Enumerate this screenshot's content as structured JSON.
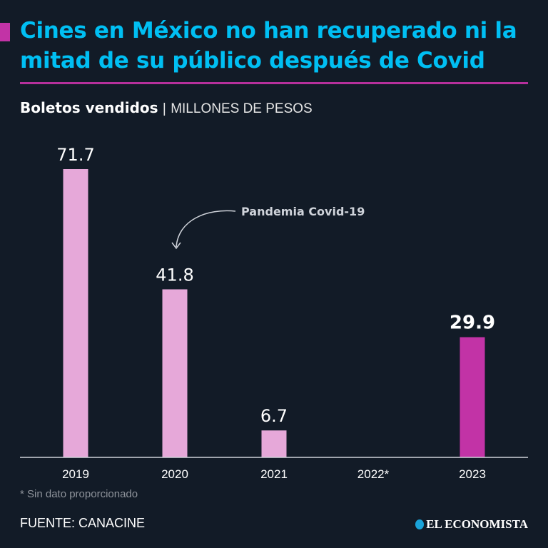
{
  "title": "Cines en México no han recuperado ni la mitad de su público después de Covid",
  "subtitle": {
    "main": "Boletos vendidos",
    "separator": "|",
    "unit": "MILLONES DE PESOS"
  },
  "chart_data": {
    "type": "bar",
    "title": "Boletos vendidos",
    "ylabel": "Millones de pesos",
    "categories": [
      "2019",
      "2020",
      "2021",
      "2022*",
      "2023"
    ],
    "values": [
      71.7,
      41.8,
      6.7,
      null,
      29.9
    ],
    "value_labels": [
      "71.7",
      "41.8",
      "6.7",
      "",
      "29.9"
    ],
    "ylim": [
      0,
      71.7
    ],
    "colors": [
      "#e6a8d9",
      "#e6a8d9",
      "#e6a8d9",
      "#e6a8d9",
      "#c233a6"
    ],
    "highlight_index": 4,
    "annotation": {
      "text": "Pandemia Covid-19",
      "target": "2020"
    },
    "grid": false
  },
  "footnote": "* Sin dato proporcionado",
  "source": "FUENTE: CANACINE",
  "brand": "EL ECONOMISTA"
}
